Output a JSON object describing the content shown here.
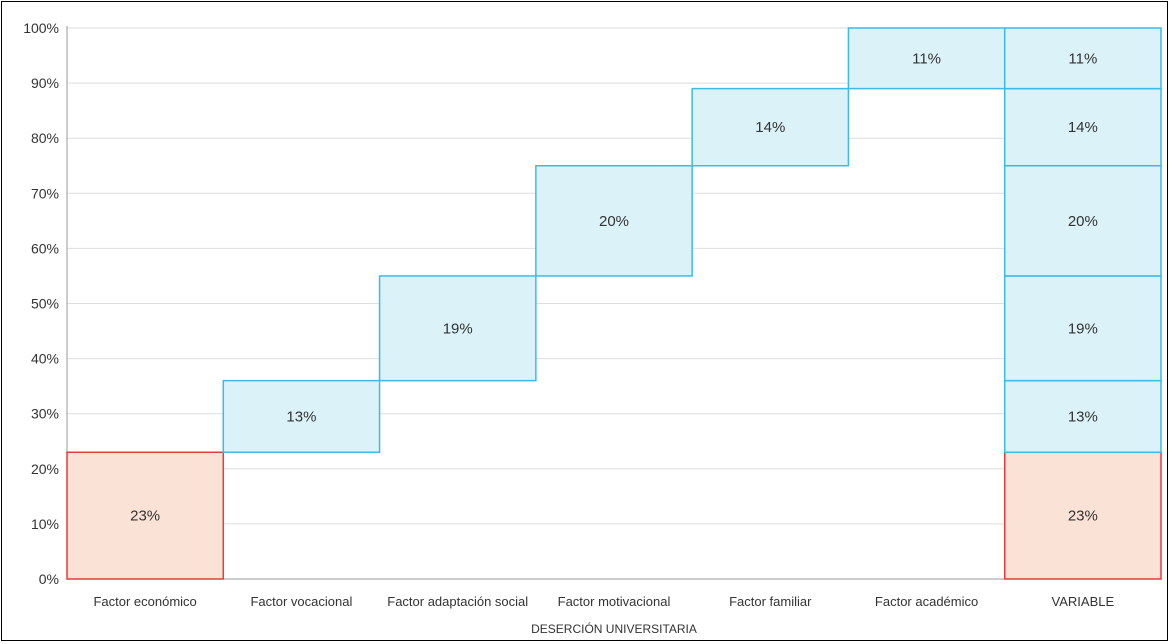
{
  "chart_data": {
    "type": "waterfall",
    "xlabel": "DESERCIÓN UNIVERSITARIA",
    "ylim": [
      0,
      100
    ],
    "y_ticks": [
      "0%",
      "10%",
      "20%",
      "30%",
      "40%",
      "50%",
      "60%",
      "70%",
      "80%",
      "90%",
      "100%"
    ],
    "grid": true,
    "categories": [
      "Factor económico",
      "Factor vocacional",
      "Factor adaptación social",
      "Factor motivacional",
      "Factor familiar",
      "Factor académico"
    ],
    "values": [
      23,
      13,
      19,
      20,
      14,
      11
    ],
    "value_labels": [
      "23%",
      "13%",
      "19%",
      "20%",
      "14%",
      "11%"
    ],
    "total_category": "VARIABLE",
    "colors": {
      "highlight_fill": "#fae3d6",
      "highlight_stroke": "#e83a3a",
      "bar_fill": "#dbf2f9",
      "bar_stroke": "#3dbbe6",
      "grid": "#dedede",
      "axis": "#9a9a9a",
      "text": "#333333"
    }
  }
}
